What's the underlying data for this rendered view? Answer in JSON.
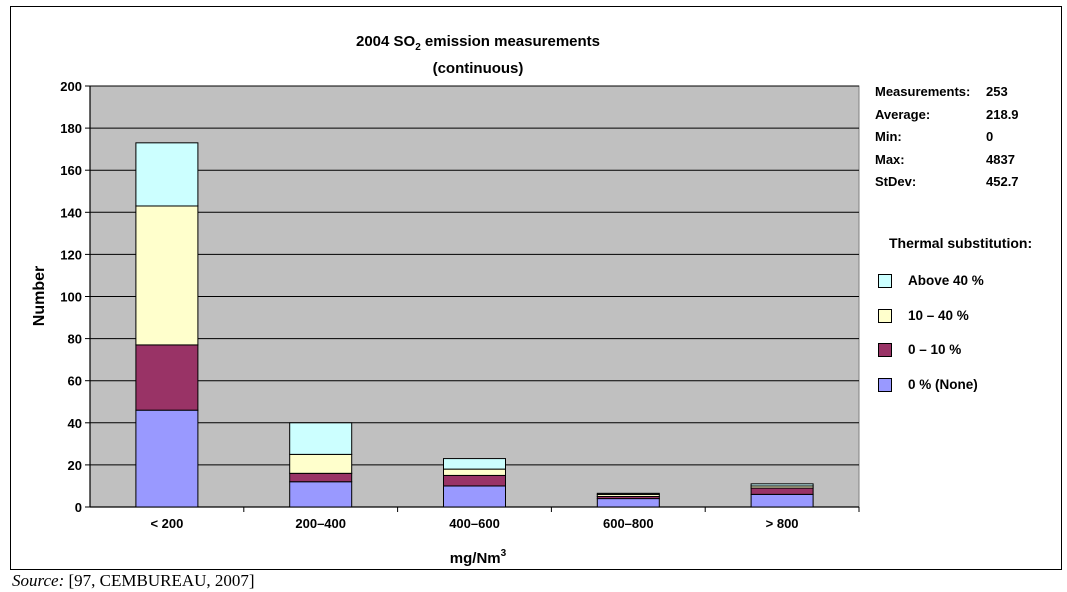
{
  "chart_data": {
    "type": "bar",
    "stacked": true,
    "title_prefix": "2004 SO",
    "title_sub": "2",
    "title_suffix": " emission measurements",
    "title_line2": "(continuous)",
    "xlabel_main": "mg/Nm",
    "xlabel_sup": "3",
    "ylabel": "Number",
    "ylim": [
      0,
      200
    ],
    "yticks": [
      0,
      20,
      40,
      60,
      80,
      100,
      120,
      140,
      160,
      180,
      200
    ],
    "categories": [
      "< 200",
      "200–400",
      "400–600",
      "600–800",
      "> 800"
    ],
    "series": [
      {
        "name": "0 % (None)",
        "color": "#9999ff",
        "values": [
          46,
          12,
          10,
          4,
          6
        ]
      },
      {
        "name": "0 – 10 %",
        "color": "#993366",
        "values": [
          31,
          4,
          5,
          1,
          3
        ]
      },
      {
        "name": "10 – 40 %",
        "color": "#ffffcc",
        "values": [
          66,
          9,
          3,
          1,
          1
        ]
      },
      {
        "name": "Above 40 %",
        "color": "#ccffff",
        "values": [
          30,
          15,
          5,
          0.5,
          1
        ]
      }
    ],
    "legend_title": "Thermal substitution:",
    "legend_placement": "right",
    "grid": true,
    "plot_background": "#c0c0c0"
  },
  "stats": [
    {
      "label": "Measurements:",
      "value": "253"
    },
    {
      "label": "Average:",
      "value": "218.9"
    },
    {
      "label": "Min:",
      "value": "0"
    },
    {
      "label": "Max:",
      "value": "4837"
    },
    {
      "label": "StDev:",
      "value": "452.7"
    }
  ],
  "source": {
    "label": "Source:",
    "text": " [97, CEMBUREAU, 2007]"
  }
}
